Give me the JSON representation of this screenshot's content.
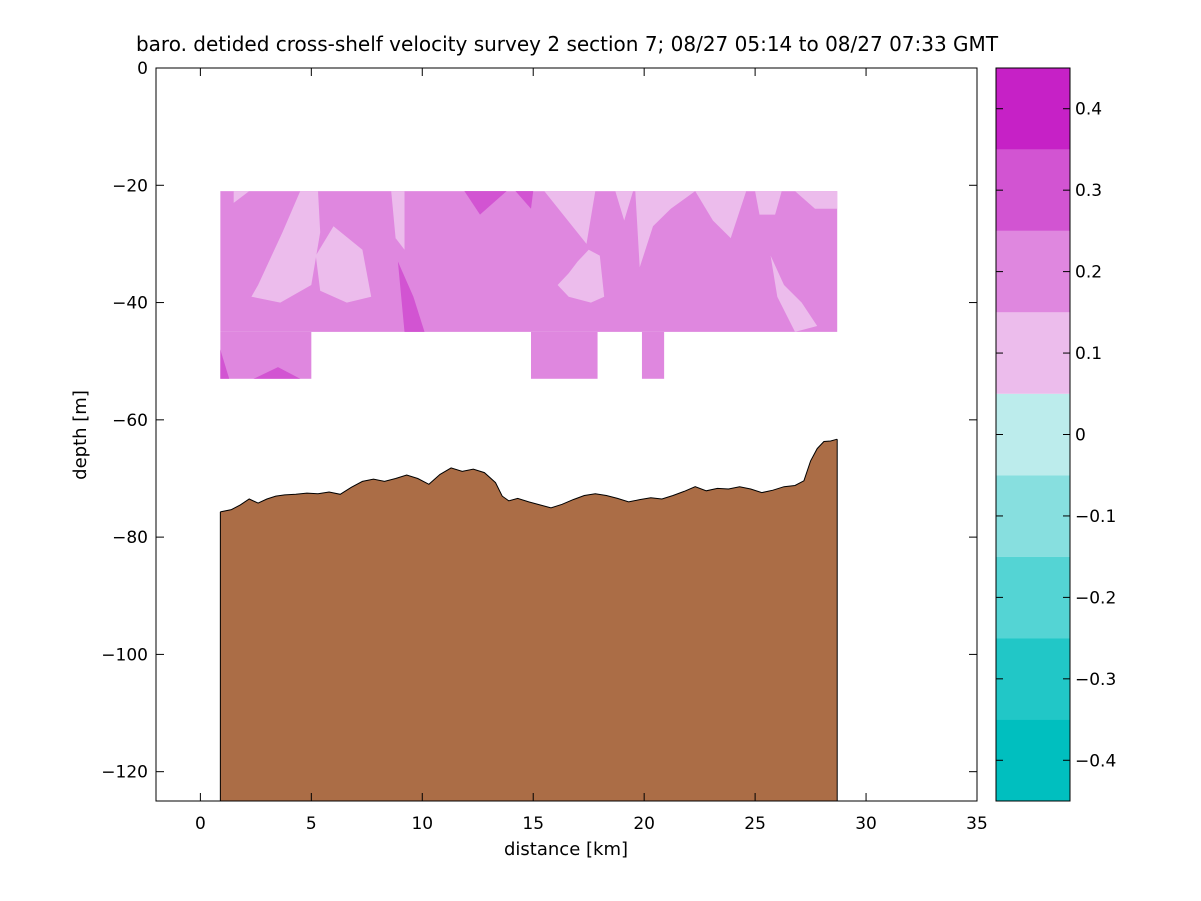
{
  "chart_data": {
    "type": "heatmap",
    "title": "baro. detided cross-shelf velocity survey 2 section 7; 08/27 05:14 to 08/27 07:33 GMT",
    "xlabel": "distance [km]",
    "ylabel": "depth [m]",
    "xlim": [
      -2,
      35
    ],
    "ylim": [
      -125,
      0
    ],
    "x_ticks": [
      0,
      5,
      10,
      15,
      20,
      25,
      30,
      35
    ],
    "y_ticks": [
      0,
      -20,
      -40,
      -60,
      -80,
      -100,
      -120
    ],
    "colorbar": {
      "range": [
        -0.45,
        0.45
      ],
      "levels": [
        -0.45,
        -0.35,
        -0.25,
        -0.15,
        -0.05,
        0.05,
        0.15,
        0.25,
        0.35,
        0.45
      ],
      "colors": [
        "#00bfbf",
        "#21c7c7",
        "#54d4d4",
        "#87dfdf",
        "#bcecec",
        "#ecbcec",
        "#df87df",
        "#d254d2",
        "#c621c6"
      ],
      "ticks": [
        -0.4,
        -0.3,
        -0.2,
        -0.1,
        0,
        0.1,
        0.2,
        0.3,
        0.4
      ],
      "tick_labels": [
        "−0.4",
        "−0.3",
        "−0.2",
        "−0.1",
        "0",
        "0.1",
        "0.2",
        "0.3",
        "0.4"
      ]
    },
    "velocity_field": {
      "background_value": 0.15,
      "colors": {
        "weak": "#ecbcec",
        "moderate": "#df87df",
        "strong": "#d254d2"
      },
      "upper_block": {
        "x_range": [
          0.9,
          28.7
        ],
        "depth_range": [
          -21,
          -45
        ]
      },
      "lower_blocks": [
        {
          "x_range": [
            0.9,
            5.0
          ],
          "depth_range": [
            -45,
            -53
          ]
        },
        {
          "x_range": [
            14.9,
            17.9
          ],
          "depth_range": [
            -45,
            -53
          ]
        },
        {
          "x_range": [
            19.9,
            20.9
          ],
          "depth_range": [
            -45,
            -53
          ]
        }
      ],
      "weak_patches": [
        [
          [
            1.5,
            -21
          ],
          [
            2.2,
            -21
          ],
          [
            1.5,
            -23
          ]
        ],
        [
          [
            2.6,
            -37
          ],
          [
            3.7,
            -28
          ],
          [
            4.5,
            -21
          ],
          [
            5.3,
            -21
          ],
          [
            5.4,
            -28
          ],
          [
            5.0,
            -37
          ],
          [
            3.6,
            -40
          ],
          [
            2.3,
            -39
          ]
        ],
        [
          [
            5.2,
            -32
          ],
          [
            6.0,
            -27
          ],
          [
            7.3,
            -31
          ],
          [
            7.7,
            -39
          ],
          [
            6.6,
            -40
          ],
          [
            5.4,
            -38
          ]
        ],
        [
          [
            8.6,
            -21
          ],
          [
            9.2,
            -21
          ],
          [
            9.2,
            -31
          ],
          [
            8.8,
            -29
          ]
        ],
        [
          [
            15.5,
            -21
          ],
          [
            17.8,
            -21
          ],
          [
            17.4,
            -30
          ]
        ],
        [
          [
            16.1,
            -37
          ],
          [
            16.6,
            -35
          ],
          [
            17.0,
            -33
          ],
          [
            17.5,
            -31
          ],
          [
            18.0,
            -32
          ],
          [
            18.2,
            -39
          ],
          [
            17.6,
            -40
          ],
          [
            16.6,
            -39
          ]
        ],
        [
          [
            18.7,
            -21
          ],
          [
            19.5,
            -21
          ],
          [
            19.1,
            -26
          ]
        ],
        [
          [
            19.6,
            -21
          ],
          [
            22.3,
            -21
          ],
          [
            21.2,
            -24
          ],
          [
            20.4,
            -27
          ],
          [
            19.8,
            -34
          ]
        ],
        [
          [
            22.3,
            -21
          ],
          [
            24.6,
            -21
          ],
          [
            23.9,
            -29
          ],
          [
            23.1,
            -26
          ]
        ],
        [
          [
            25.0,
            -21
          ],
          [
            26.2,
            -21
          ],
          [
            25.9,
            -25
          ],
          [
            25.2,
            -25
          ]
        ],
        [
          [
            26.8,
            -21
          ],
          [
            28.7,
            -21
          ],
          [
            28.7,
            -24
          ],
          [
            27.7,
            -24
          ]
        ],
        [
          [
            25.7,
            -32
          ],
          [
            26.3,
            -37
          ],
          [
            27.1,
            -40
          ],
          [
            27.8,
            -44
          ],
          [
            26.8,
            -45
          ],
          [
            26.0,
            -39
          ]
        ]
      ],
      "strong_patches": [
        [
          [
            11.9,
            -21
          ],
          [
            13.8,
            -21
          ],
          [
            12.6,
            -25
          ]
        ],
        [
          [
            14.2,
            -21
          ],
          [
            15.0,
            -21
          ],
          [
            14.9,
            -24
          ]
        ],
        [
          [
            8.9,
            -33
          ],
          [
            9.6,
            -39
          ],
          [
            10.1,
            -45
          ],
          [
            9.2,
            -45
          ]
        ],
        [
          [
            0.9,
            -48
          ],
          [
            1.3,
            -53
          ],
          [
            0.9,
            -53
          ]
        ],
        [
          [
            2.4,
            -53
          ],
          [
            3.5,
            -51
          ],
          [
            4.5,
            -53
          ]
        ]
      ]
    },
    "seafloor": {
      "color": "#ab6d46",
      "x": [
        0.9,
        1.4,
        1.8,
        2.2,
        2.6,
        3.0,
        3.4,
        3.8,
        4.3,
        4.8,
        5.3,
        5.8,
        6.3,
        6.8,
        7.3,
        7.8,
        8.3,
        8.8,
        9.3,
        9.8,
        10.3,
        10.8,
        11.3,
        11.8,
        12.3,
        12.8,
        13.3,
        13.6,
        13.9,
        14.3,
        14.8,
        15.3,
        15.8,
        16.3,
        16.8,
        17.3,
        17.8,
        18.3,
        18.8,
        19.3,
        19.8,
        20.3,
        20.8,
        21.3,
        21.8,
        22.3,
        22.8,
        23.3,
        23.8,
        24.3,
        24.8,
        25.3,
        25.8,
        26.3,
        26.8,
        27.2,
        27.5,
        27.8,
        28.1,
        28.4,
        28.7
      ],
      "depth": [
        -75.7,
        -75.3,
        -74.5,
        -73.5,
        -74.2,
        -73.5,
        -73.0,
        -72.8,
        -72.7,
        -72.5,
        -72.6,
        -72.3,
        -72.7,
        -71.5,
        -70.5,
        -70.1,
        -70.5,
        -70.0,
        -69.4,
        -70.0,
        -71.0,
        -69.3,
        -68.2,
        -68.8,
        -68.4,
        -69.0,
        -70.7,
        -73.0,
        -73.8,
        -73.4,
        -74.0,
        -74.5,
        -75.0,
        -74.4,
        -73.6,
        -72.9,
        -72.6,
        -72.9,
        -73.4,
        -74.0,
        -73.6,
        -73.3,
        -73.5,
        -72.9,
        -72.2,
        -71.4,
        -72.1,
        -71.7,
        -71.8,
        -71.4,
        -71.8,
        -72.4,
        -72.0,
        -71.4,
        -71.2,
        -70.4,
        -67.0,
        -64.9,
        -63.7,
        -63.6,
        -63.3
      ]
    }
  }
}
